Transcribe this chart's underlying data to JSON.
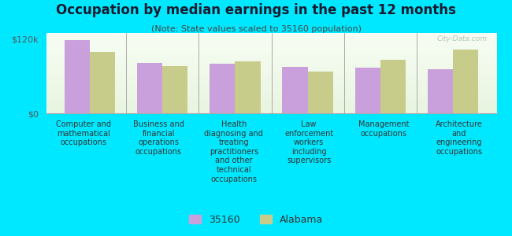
{
  "title": "Occupation by median earnings in the past 12 months",
  "subtitle": "(Note: State values scaled to 35160 population)",
  "categories": [
    "Computer and\nmathematical\noccupations",
    "Business and\nfinancial\noperations\noccupations",
    "Health\ndiagnosing and\ntreating\npractitioners\nand other\ntechnical\noccupations",
    "Law\nenforcement\nworkers\nincluding\nsupervisors",
    "Management\noccupations",
    "Architecture\nand\nengineering\noccupations"
  ],
  "values_35160": [
    118000,
    82000,
    80000,
    75000,
    74000,
    71000
  ],
  "values_alabama": [
    100000,
    77000,
    84000,
    67000,
    87000,
    103000
  ],
  "color_35160": "#c9a0dc",
  "color_alabama": "#c8cc8a",
  "bar_width": 0.35,
  "ylim": [
    0,
    130000
  ],
  "yticks": [
    0,
    120000
  ],
  "ytick_labels": [
    "$0",
    "$120k"
  ],
  "outer_background": "#00e8ff",
  "plot_bg_top": "#e8f5e0",
  "plot_bg_bottom": "#f5fbf0",
  "legend_labels": [
    "35160",
    "Alabama"
  ],
  "watermark": "City-Data.com",
  "title_fontsize": 12,
  "subtitle_fontsize": 8,
  "label_fontsize": 7
}
